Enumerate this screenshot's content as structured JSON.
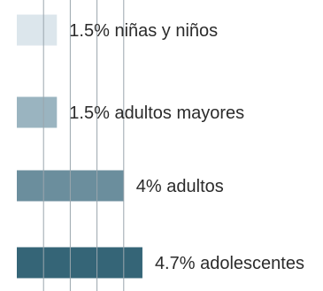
{
  "chart_data": {
    "type": "bar",
    "orientation": "horizontal",
    "categories": [
      "niñas y niños",
      "adultos mayores",
      "adultos",
      "adolescentes"
    ],
    "values": [
      1.5,
      1.5,
      4,
      4.7
    ],
    "data_labels": [
      "1.5% niñas y niños",
      "1.5% adultos mayores",
      "4% adultos",
      "4.7% adolescentes"
    ],
    "colors": [
      "#dce6ec",
      "#9ab4c0",
      "#6b8e9d",
      "#356577"
    ],
    "gridline_color": "#9aa6ad",
    "xlim": [
      0,
      5
    ],
    "grid": true
  }
}
